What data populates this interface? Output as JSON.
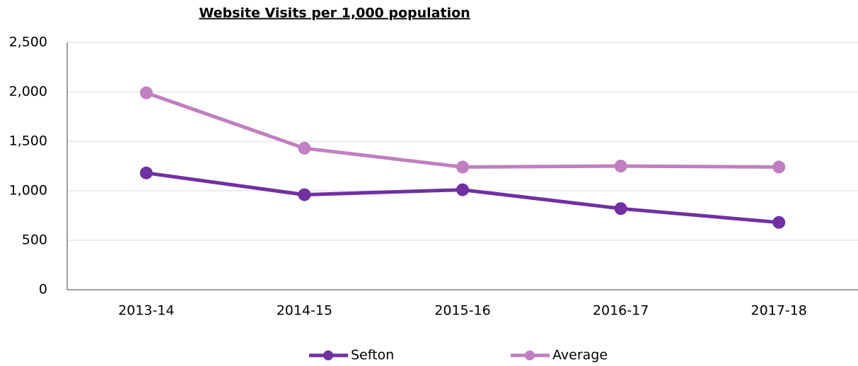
{
  "chart_data": {
    "type": "line",
    "title": "Website Visits per 1,000 population",
    "categories": [
      "2013-14",
      "2014-15",
      "2015-16",
      "2016-17",
      "2017-18"
    ],
    "series": [
      {
        "name": "Sefton",
        "color": "#7030a0",
        "values": [
          1180,
          960,
          1010,
          820,
          680
        ]
      },
      {
        "name": "Average",
        "color": "#c07fc0",
        "values": [
          1990,
          1430,
          1240,
          1250,
          1240
        ]
      }
    ],
    "ylim": [
      0,
      2500
    ],
    "yticks": [
      0,
      500,
      {
        "value": 1000,
        "label": "1,000"
      },
      {
        "value": 1500,
        "label": "1,500"
      },
      {
        "value": 2000,
        "label": "2,000"
      },
      {
        "value": 2500,
        "label": "2,500"
      }
    ],
    "grid": true,
    "legend": "bottom"
  }
}
